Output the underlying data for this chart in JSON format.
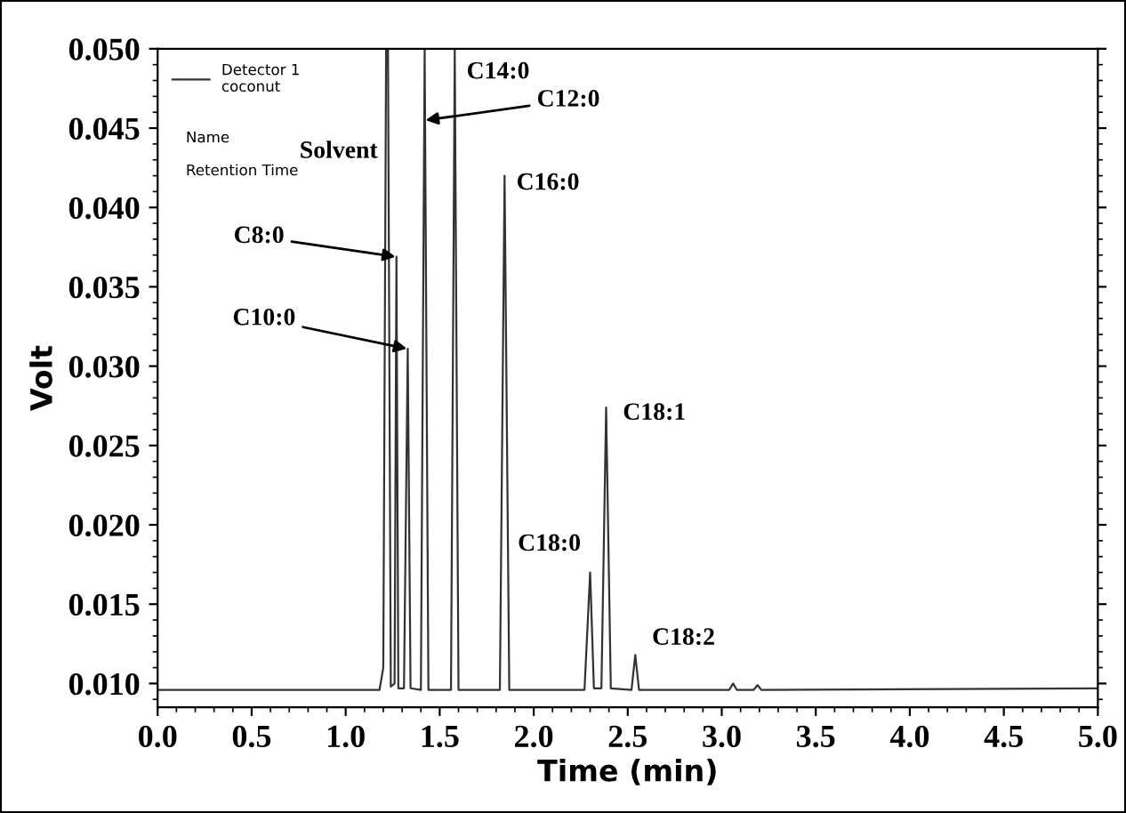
{
  "chart_data": {
    "type": "line",
    "xlabel": "Time (min)",
    "ylabel": "Volt",
    "x": [
      0.0,
      1.18,
      1.2,
      1.215,
      1.225,
      1.24,
      1.26,
      1.27,
      1.28,
      1.31,
      1.33,
      1.345,
      1.4,
      1.42,
      1.44,
      1.56,
      1.58,
      1.6,
      1.82,
      1.845,
      1.87,
      2.27,
      2.3,
      2.32,
      2.36,
      2.385,
      2.41,
      2.52,
      2.54,
      2.56,
      3.04,
      3.06,
      3.08,
      3.17,
      3.19,
      3.21,
      5.0
    ],
    "series": [
      {
        "name": "Detector 1\ncoconut",
        "color": "#333333",
        "values": [
          0.0096,
          0.0096,
          0.011,
          0.05,
          0.05,
          0.0098,
          0.01,
          0.0369,
          0.0097,
          0.0097,
          0.0311,
          0.0097,
          0.0096,
          0.05,
          0.0096,
          0.0096,
          0.05,
          0.0096,
          0.0096,
          0.042,
          0.0096,
          0.0096,
          0.017,
          0.0097,
          0.0097,
          0.0274,
          0.0097,
          0.0096,
          0.0118,
          0.0096,
          0.0096,
          0.01,
          0.0096,
          0.0096,
          0.0099,
          0.0096,
          0.0097
        ]
      }
    ],
    "xlim": [
      0,
      5
    ],
    "ylim": [
      0.0085,
      0.05
    ],
    "xticks": [
      {
        "value": 0,
        "label": "0.0"
      },
      {
        "value": 0.5,
        "label": "0.5"
      },
      {
        "value": 1,
        "label": "1.0"
      },
      {
        "value": 1.5,
        "label": "1.5"
      },
      {
        "value": 2,
        "label": "2.0"
      },
      {
        "value": 2.5,
        "label": "2.5"
      },
      {
        "value": 3,
        "label": "3.0"
      },
      {
        "value": 3.5,
        "label": "3.5"
      },
      {
        "value": 4,
        "label": "4.0"
      },
      {
        "value": 4.5,
        "label": "4.5"
      },
      {
        "value": 5,
        "label": "5.0"
      }
    ],
    "yticks": [
      {
        "value": 0.01,
        "label": "0.010"
      },
      {
        "value": 0.015,
        "label": "0.015"
      },
      {
        "value": 0.02,
        "label": "0.020"
      },
      {
        "value": 0.025,
        "label": "0.025"
      },
      {
        "value": 0.03,
        "label": "0.030"
      },
      {
        "value": 0.035,
        "label": "0.035"
      },
      {
        "value": 0.04,
        "label": "0.040"
      },
      {
        "value": 0.045,
        "label": "0.045"
      },
      {
        "value": 0.05,
        "label": "0.050"
      }
    ],
    "grid": false,
    "legend": "top left",
    "marker": "none",
    "line_style": "solid",
    "annotations": [
      {
        "text": "Solvent",
        "x": 1.21,
        "y": 0.0435
      },
      {
        "text": "C8:0",
        "x": 1.265,
        "y": 0.0369
      },
      {
        "text": "C10:0",
        "x": 1.325,
        "y": 0.0311
      },
      {
        "text": "C12:0",
        "x": 1.425,
        "y": 0.0455
      },
      {
        "text": "C14:0",
        "x": 1.59,
        "y": 0.0485
      },
      {
        "text": "C16:0",
        "x": 1.855,
        "y": 0.0415
      },
      {
        "text": "C18:0",
        "x": 2.29,
        "y": 0.0175
      },
      {
        "text": "C18:1",
        "x": 2.395,
        "y": 0.027
      },
      {
        "text": "C18:2",
        "x": 2.55,
        "y": 0.0122
      },
      "Name",
      "Retention Time"
    ]
  }
}
